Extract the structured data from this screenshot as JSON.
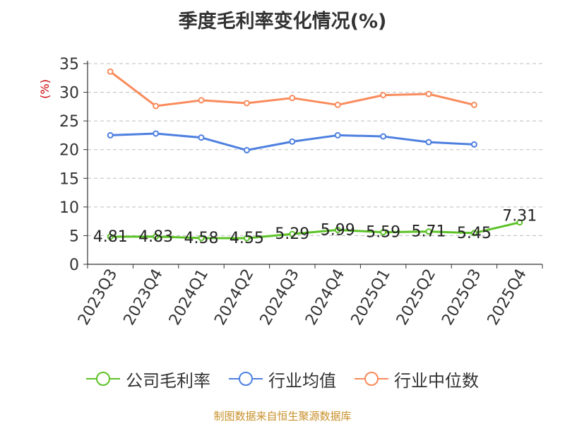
{
  "chart_data": {
    "type": "line",
    "title": "季度毛利率变化情况(%)",
    "ylabel": "(%)",
    "categories": [
      "2023Q3",
      "2023Q4",
      "2024Q1",
      "2024Q2",
      "2024Q3",
      "2024Q4",
      "2025Q1",
      "2025Q2",
      "2025Q3",
      "2025Q4"
    ],
    "ylim": [
      0,
      35
    ],
    "yticks": [
      "0",
      "5",
      "10",
      "15",
      "20",
      "25",
      "30",
      "35"
    ],
    "grid": "horizontal dashed",
    "legend_position": "bottom",
    "series": [
      {
        "name": "公司毛利率",
        "color": "#5cc227",
        "values": [
          4.81,
          4.83,
          4.58,
          4.55,
          5.29,
          5.99,
          5.59,
          5.71,
          5.45,
          7.31
        ],
        "labels": [
          "4.81",
          "4.83",
          "4.58",
          "4.55",
          "5.29",
          "5.99",
          "5.59",
          "5.71",
          "5.45",
          "7.31"
        ]
      },
      {
        "name": "行业均值",
        "color": "#4e80e0",
        "values": [
          22.5,
          22.8,
          22.1,
          19.9,
          21.4,
          22.5,
          22.3,
          21.3,
          20.9,
          null
        ]
      },
      {
        "name": "行业中位数",
        "color": "#f98b5c",
        "values": [
          33.6,
          27.6,
          28.6,
          28.1,
          29.0,
          27.8,
          29.5,
          29.7,
          27.8,
          null
        ]
      }
    ]
  },
  "source_note": "制图数据来自恒生聚源数据库"
}
